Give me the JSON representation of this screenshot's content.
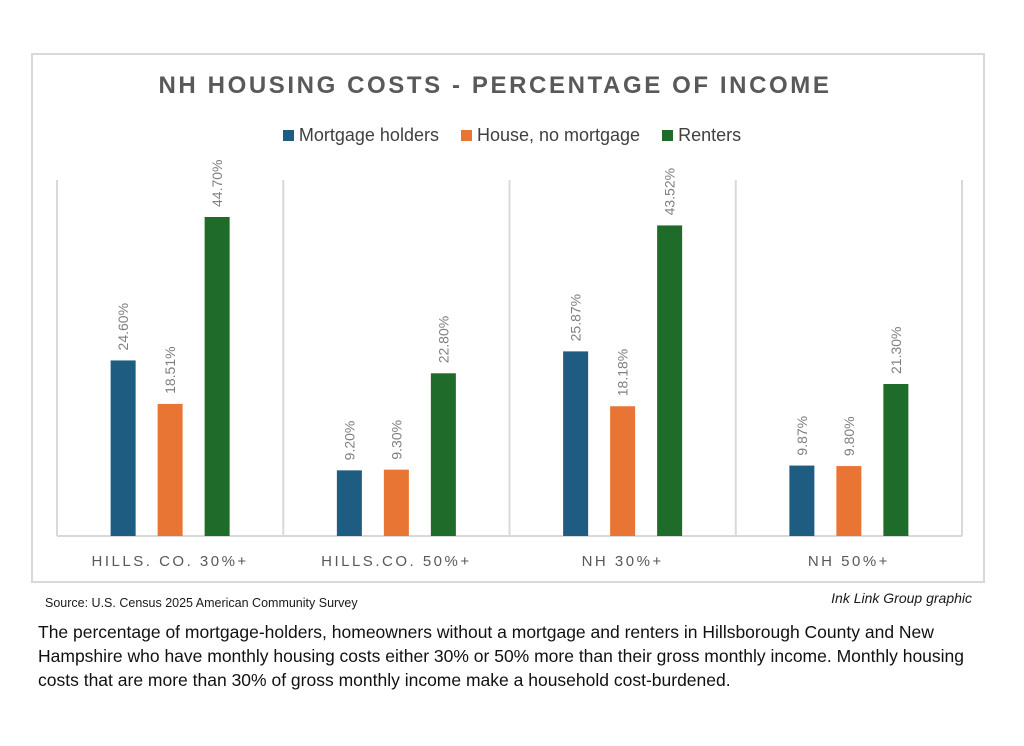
{
  "chart_data": {
    "type": "bar",
    "title": "NH HOUSING COSTS - PERCENTAGE OF INCOME",
    "xlabel": "",
    "ylabel": "",
    "ylim": [
      0,
      50
    ],
    "grid": false,
    "legend_position": "top",
    "categories": [
      "HILLS. CO. 30%+",
      "HILLS.CO. 50%+",
      "NH 30%+",
      "NH 50%+"
    ],
    "series": [
      {
        "name": "Mortgage holders",
        "color": "#1f5c82",
        "values": [
          24.6,
          9.2,
          25.87,
          9.87
        ],
        "labels": [
          "24.60%",
          "9.20%",
          "25.87%",
          "9.87%"
        ]
      },
      {
        "name": "House, no mortgage",
        "color": "#e97535",
        "values": [
          18.51,
          9.3,
          18.18,
          9.8
        ],
        "labels": [
          "18.51%",
          "9.30%",
          "18.18%",
          "9.80%"
        ]
      },
      {
        "name": "Renters",
        "color": "#1e6b2a",
        "values": [
          44.7,
          22.8,
          43.52,
          21.3
        ],
        "labels": [
          "44.70%",
          "22.80%",
          "43.52%",
          "21.30%"
        ]
      }
    ]
  },
  "footer": {
    "source": "Source: U.S. Census 2025 American Community Survey",
    "credit": "Ink Link Group graphic"
  },
  "caption": "The percentage of mortgage-holders, homeowners without a mortgage and renters in Hillsborough County and New Hampshire who have monthly housing costs either 30% or 50% more than their gross monthly income. Monthly housing costs that are more than 30% of gross monthly income make a household cost-burdened."
}
